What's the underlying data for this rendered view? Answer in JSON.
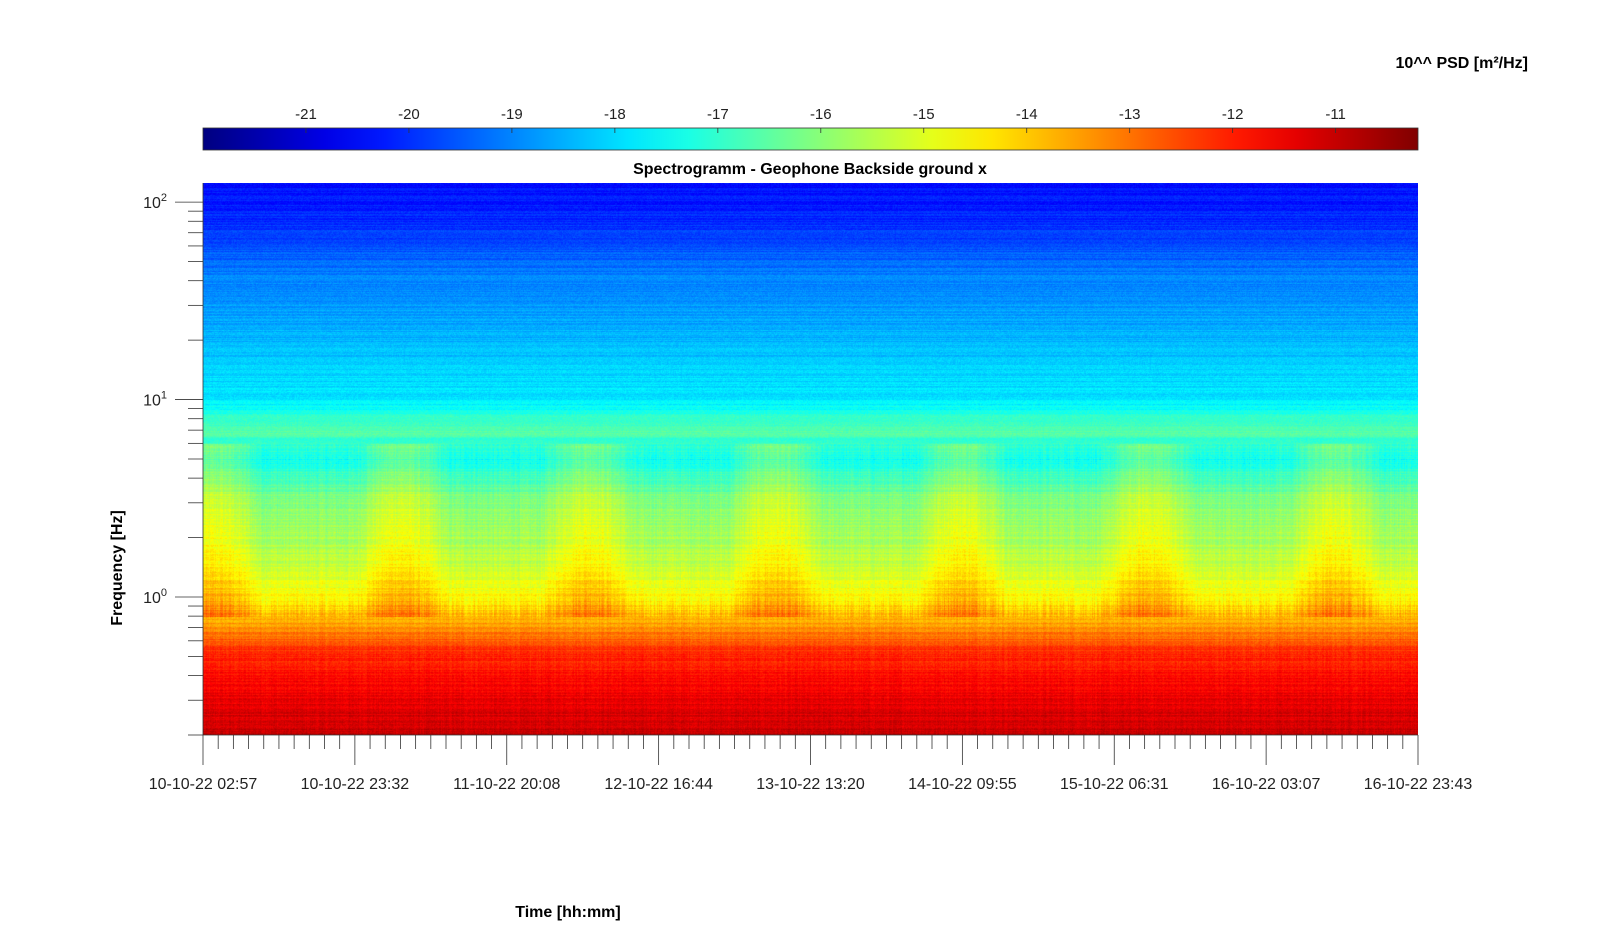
{
  "chart_data": {
    "type": "heatmap",
    "title": "Spectrogramm - Geophone Backside ground x",
    "xlabel": "Time [hh:mm]",
    "ylabel": "Frequency [Hz]",
    "yscale": "log",
    "ylim": [
      0.2,
      125
    ],
    "x_tick_labels": [
      "10-10-22 02:57",
      "10-10-22 23:32",
      "11-10-22 20:08",
      "12-10-22 16:44",
      "13-10-22 13:20",
      "14-10-22 09:55",
      "15-10-22 06:31",
      "16-10-22 03:07",
      "16-10-22 23:43"
    ],
    "y_ticks": [
      {
        "base": "10",
        "exp": "0",
        "value": 1
      },
      {
        "base": "10",
        "exp": "1",
        "value": 10
      },
      {
        "base": "10",
        "exp": "2",
        "value": 100
      }
    ],
    "colorbar": {
      "label": "10^^ PSD [m²/Hz]",
      "colormap": "jet",
      "range": [
        -22,
        -10.2
      ],
      "ticks": [
        "-21",
        "-20",
        "-19",
        "-18",
        "-17",
        "-16",
        "-15",
        "-14",
        "-13",
        "-12",
        "-11"
      ]
    },
    "psd_profile_by_frequency": [
      {
        "freq": 0.2,
        "log10_psd": -11.0
      },
      {
        "freq": 0.35,
        "log10_psd": -11.6
      },
      {
        "freq": 0.55,
        "log10_psd": -12.3
      },
      {
        "freq": 0.75,
        "log10_psd": -13.6
      },
      {
        "freq": 1.0,
        "log10_psd": -14.6
      },
      {
        "freq": 1.5,
        "log10_psd": -15.4
      },
      {
        "freq": 3.0,
        "log10_psd": -16.0
      },
      {
        "freq": 5.0,
        "log10_psd": -17.4
      },
      {
        "freq": 7.0,
        "log10_psd": -16.6
      },
      {
        "freq": 10.0,
        "log10_psd": -17.8
      },
      {
        "freq": 20.0,
        "log10_psd": -18.4
      },
      {
        "freq": 40.0,
        "log10_psd": -19.0
      },
      {
        "freq": 80.0,
        "log10_psd": -20.0
      },
      {
        "freq": 125.0,
        "log10_psd": -20.4
      }
    ]
  }
}
